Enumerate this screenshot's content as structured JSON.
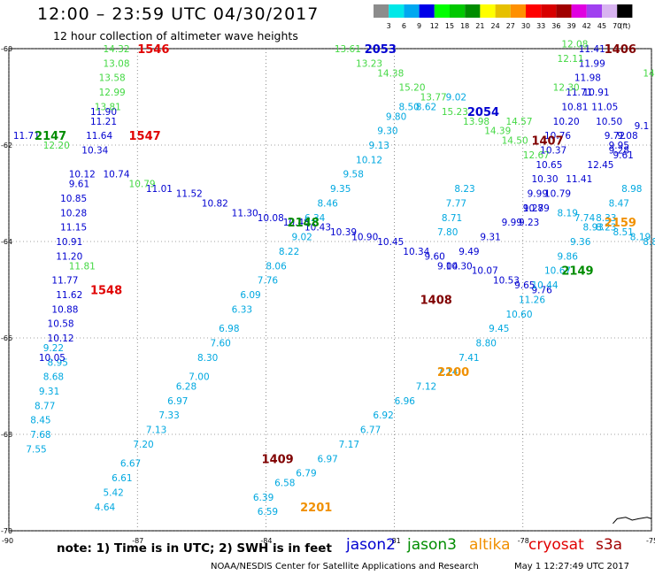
{
  "header": {
    "title": "12:00 – 23:59 UTC 04/30/2017",
    "subtitle": "12 hour collection of altimeter wave heights"
  },
  "colorbar": {
    "labels": [
      "3",
      "6",
      "9",
      "12",
      "15",
      "18",
      "21",
      "24",
      "27",
      "30",
      "33",
      "36",
      "39",
      "42",
      "45",
      "70"
    ],
    "unit": "(ft)",
    "colors": [
      "#8c8c8c",
      "#00e8e8",
      "#00a8f0",
      "#0000e8",
      "#00ff00",
      "#00c800",
      "#008c00",
      "#ffff00",
      "#e6c000",
      "#ff9000",
      "#ff0000",
      "#d80000",
      "#a00000",
      "#e000e0",
      "#a040f0",
      "#d8b4f0",
      "#000000"
    ]
  },
  "note": "note: 1) Time is in UTC; 2) SWH is in feet",
  "missions": [
    {
      "name": "jason2",
      "color": "#0000d0"
    },
    {
      "name": "jason3",
      "color": "#008c00"
    },
    {
      "name": "altika",
      "color": "#f09000"
    },
    {
      "name": "cryosat",
      "color": "#e00000"
    },
    {
      "name": "s3a",
      "color": "#a00000"
    }
  ],
  "credit_left": "NOAA/NESDIS Center for Satellite Applications and Research",
  "credit_right": "May  1 12:27:49 UTC 2017",
  "chart_data": {
    "type": "scatter",
    "title": "12:00 – 23:59 UTC 04/30/2017",
    "subtitle": "12 hour collection of altimeter wave heights",
    "xlim": [
      -90,
      -75
    ],
    "ylim": [
      -70,
      -60
    ],
    "x_ticks": [
      -90,
      -87,
      -84,
      -81,
      -78,
      -75
    ],
    "y_ticks": [
      -60,
      -62,
      -64,
      -66,
      -68,
      -70
    ],
    "grid": true,
    "colors": {
      "blue": "#0000d0",
      "green": "#44d844",
      "cyan": "#00a8e0",
      "time_red": "#e00000",
      "time_green": "#008c00",
      "time_blue": "#0000d0",
      "time_orange": "#f09000",
      "time_maroon": "#800000"
    },
    "series": [
      {
        "name": "track A",
        "color": "cyan",
        "labels": [
          [
            "9.22",
            -89.2,
            -66.2
          ],
          [
            "8.95",
            -89.1,
            -66.5
          ],
          [
            "8.68",
            -89.2,
            -66.8
          ],
          [
            "9.31",
            -89.3,
            -67.1
          ],
          [
            "8.77",
            -89.4,
            -67.4
          ],
          [
            "8.45",
            -89.5,
            -67.7
          ],
          [
            "7.68",
            -89.5,
            -68.0
          ],
          [
            "7.55",
            -89.6,
            -68.3
          ]
        ]
      },
      {
        "name": "track A2",
        "color": "blue",
        "labels": [
          [
            "11.90",
            -88.1,
            -61.3
          ],
          [
            "11.21",
            -88.1,
            -61.5
          ],
          [
            "11.64",
            -88.2,
            -61.8
          ],
          [
            "10.34",
            -88.3,
            -62.1
          ],
          [
            "10.74",
            -87.8,
            -62.6
          ],
          [
            "10.12",
            -88.6,
            -62.6
          ],
          [
            "9.61",
            -88.6,
            -62.8
          ],
          [
            "10.85",
            -88.8,
            -63.1
          ],
          [
            "10.28",
            -88.8,
            -63.4
          ],
          [
            "11.15",
            -88.8,
            -63.7
          ],
          [
            "10.91",
            -88.9,
            -64.0
          ],
          [
            "11.20",
            -88.9,
            -64.3
          ],
          [
            "11.77",
            -89.0,
            -64.8
          ],
          [
            "11.62",
            -88.9,
            -65.1
          ],
          [
            "10.88",
            -89.0,
            -65.4
          ],
          [
            "10.58",
            -89.1,
            -65.7
          ],
          [
            "10.12",
            -89.1,
            -66.0
          ],
          [
            "10.05",
            -89.3,
            -66.4
          ]
        ]
      },
      {
        "name": "track A3",
        "color": "green",
        "labels": [
          [
            "14.32",
            -87.8,
            -60.0
          ],
          [
            "13.08",
            -87.8,
            -60.3
          ],
          [
            "13.58",
            -87.9,
            -60.6
          ],
          [
            "12.99",
            -87.9,
            -60.9
          ],
          [
            "13.81",
            -88.0,
            -61.2
          ],
          [
            "12.20",
            -89.2,
            -62.0
          ],
          [
            "11.81",
            -88.6,
            -64.5
          ],
          [
            "10.79",
            -87.2,
            -62.8
          ]
        ]
      },
      {
        "name": "track B",
        "color": "blue",
        "labels": [
          [
            "11.71",
            -89.9,
            -61.8
          ],
          [
            "11.01",
            -86.8,
            -62.9
          ],
          [
            "11.52",
            -86.1,
            -63.0
          ],
          [
            "10.82",
            -85.5,
            -63.2
          ],
          [
            "11.30",
            -84.8,
            -63.4
          ],
          [
            "10.08",
            -84.2,
            -63.5
          ],
          [
            "10.48",
            -83.6,
            -63.6
          ],
          [
            "10.43",
            -83.1,
            -63.7
          ],
          [
            "10.39",
            -82.5,
            -63.8
          ],
          [
            "10.90",
            -82.0,
            -63.9
          ],
          [
            "10.45",
            -81.4,
            -64.0
          ],
          [
            "10.34",
            -80.8,
            -64.2
          ],
          [
            "9.60",
            -80.3,
            -64.3
          ],
          [
            "10.30",
            -79.8,
            -64.5
          ],
          [
            "10.07",
            -79.2,
            -64.6
          ],
          [
            "10.53",
            -78.7,
            -64.8
          ],
          [
            "9.65",
            -78.2,
            -64.9
          ],
          [
            "9.76",
            -77.8,
            -65.0
          ]
        ]
      },
      {
        "name": "track C",
        "color": "green",
        "labels": [
          [
            "13.61",
            -82.4,
            -60.0
          ],
          [
            "13.23",
            -81.9,
            -60.3
          ],
          [
            "14.38",
            -81.4,
            -60.5
          ],
          [
            "15.20",
            -80.9,
            -60.8
          ],
          [
            "13.77",
            -80.4,
            -61.0
          ],
          [
            "15.23",
            -79.9,
            -61.3
          ],
          [
            "13.98",
            -79.4,
            -61.5
          ],
          [
            "14.39",
            -78.9,
            -61.7
          ],
          [
            "14.50",
            -78.5,
            -61.9
          ],
          [
            "12.67",
            -78.0,
            -62.2
          ]
        ]
      },
      {
        "name": "track D",
        "color": "cyan",
        "labels": [
          [
            "4.64",
            -88.0,
            -69.5
          ],
          [
            "5.42",
            -87.8,
            -69.2
          ],
          [
            "6.61",
            -87.6,
            -68.9
          ],
          [
            "6.67",
            -87.4,
            -68.6
          ],
          [
            "7.20",
            -87.1,
            -68.2
          ],
          [
            "7.13",
            -86.8,
            -67.9
          ],
          [
            "7.33",
            -86.5,
            -67.6
          ],
          [
            "6.97",
            -86.3,
            -67.3
          ],
          [
            "6.28",
            -86.1,
            -67.0
          ],
          [
            "7.00",
            -85.8,
            -66.8
          ],
          [
            "8.30",
            -85.6,
            -66.4
          ],
          [
            "7.60",
            -85.3,
            -66.1
          ],
          [
            "6.98",
            -85.1,
            -65.8
          ],
          [
            "6.33",
            -84.8,
            -65.4
          ],
          [
            "6.09",
            -84.6,
            -65.1
          ],
          [
            "7.76",
            -84.2,
            -64.8
          ],
          [
            "8.06",
            -84.0,
            -64.5
          ],
          [
            "8.22",
            -83.7,
            -64.2
          ],
          [
            "9.02",
            -83.4,
            -63.9
          ],
          [
            "6.34",
            -83.1,
            -63.5
          ],
          [
            "8.46",
            -82.8,
            -63.2
          ],
          [
            "9.35",
            -82.5,
            -62.9
          ],
          [
            "9.58",
            -82.2,
            -62.6
          ],
          [
            "10.12",
            -81.9,
            -62.3
          ],
          [
            "9.13",
            -81.6,
            -62.0
          ],
          [
            "9.30",
            -81.4,
            -61.7
          ],
          [
            "9.80",
            -81.2,
            -61.4
          ],
          [
            "8.50",
            -80.9,
            -61.2
          ],
          [
            "8.62",
            -80.5,
            -61.2
          ],
          [
            "9.02",
            -79.8,
            -61.0
          ]
        ]
      },
      {
        "name": "track E",
        "color": "cyan",
        "labels": [
          [
            "6.59",
            -84.2,
            -69.6
          ],
          [
            "6.39",
            -84.3,
            -69.3
          ],
          [
            "6.58",
            -83.8,
            -69.0
          ],
          [
            "6.79",
            -83.3,
            -68.8
          ],
          [
            "6.97",
            -82.8,
            -68.5
          ],
          [
            "7.17",
            -82.3,
            -68.2
          ],
          [
            "6.77",
            -81.8,
            -67.9
          ],
          [
            "6.92",
            -81.5,
            -67.6
          ],
          [
            "6.96",
            -81.0,
            -67.3
          ],
          [
            "7.12",
            -80.5,
            -67.0
          ],
          [
            "7.14",
            -80.0,
            -66.7
          ],
          [
            "7.41",
            -79.5,
            -66.4
          ],
          [
            "8.80",
            -79.1,
            -66.1
          ],
          [
            "9.45",
            -78.8,
            -65.8
          ],
          [
            "10.60",
            -78.4,
            -65.5
          ],
          [
            "11.26",
            -78.1,
            -65.2
          ],
          [
            "10.44",
            -77.8,
            -64.9
          ],
          [
            "10.67",
            -77.5,
            -64.6
          ],
          [
            "9.86",
            -77.2,
            -64.3
          ],
          [
            "9.36",
            -76.9,
            -64.0
          ],
          [
            "8.93",
            -76.6,
            -63.7
          ],
          [
            "8.33",
            -76.3,
            -63.5
          ],
          [
            "8.47",
            -76.0,
            -63.2
          ],
          [
            "8.98",
            -75.7,
            -62.9
          ]
        ]
      },
      {
        "name": "track F",
        "color": "blue",
        "labels": [
          [
            "9.04",
            -80.0,
            -64.5
          ],
          [
            "9.49",
            -79.5,
            -64.2
          ],
          [
            "9.31",
            -79.0,
            -63.9
          ],
          [
            "9.99",
            -78.5,
            -63.6
          ],
          [
            "9.28",
            -78.0,
            -63.3
          ],
          [
            "10.79",
            -77.5,
            -63.0
          ],
          [
            "11.41",
            -77.0,
            -62.7
          ],
          [
            "12.45",
            -76.5,
            -62.4
          ],
          [
            "9.28",
            -76.0,
            -62.1
          ],
          [
            "9.08",
            -75.8,
            -61.8
          ],
          [
            "9.1",
            -75.4,
            -61.6
          ]
        ]
      },
      {
        "name": "track G",
        "color": "blue",
        "labels": [
          [
            "11.41",
            -76.7,
            -60.0
          ],
          [
            "11.99",
            -76.7,
            -60.3
          ],
          [
            "11.98",
            -76.8,
            -60.6
          ],
          [
            "11.71",
            -77.0,
            -60.9
          ],
          [
            "10.81",
            -77.1,
            -61.2
          ],
          [
            "10.20",
            -77.3,
            -61.5
          ],
          [
            "10.76",
            -77.5,
            -61.8
          ],
          [
            "10.37",
            -77.6,
            -62.1
          ],
          [
            "10.65",
            -77.7,
            -62.4
          ],
          [
            "10.30",
            -77.8,
            -62.7
          ],
          [
            "9.99",
            -77.9,
            -63.0
          ],
          [
            "10.79",
            -78.0,
            -63.3
          ],
          [
            "9.23",
            -78.1,
            -63.6
          ],
          [
            "10.91",
            -76.6,
            -60.9
          ],
          [
            "11.05",
            -76.4,
            -61.2
          ],
          [
            "10.50",
            -76.3,
            -61.5
          ],
          [
            "9.72",
            -76.1,
            -61.8
          ],
          [
            "9.95",
            -76.0,
            -62.0
          ],
          [
            "9.61",
            -75.9,
            -62.2
          ]
        ]
      },
      {
        "name": "track H",
        "color": "green",
        "labels": [
          [
            "12.08",
            -77.1,
            -59.9
          ],
          [
            "12.11",
            -77.2,
            -60.2
          ],
          [
            "12.30",
            -77.3,
            -60.8
          ],
          [
            "14.57",
            -78.4,
            -61.5
          ],
          [
            "14.81",
            -75.2,
            -60.5
          ]
        ]
      },
      {
        "name": "track I",
        "color": "cyan",
        "labels": [
          [
            "8.23",
            -79.6,
            -62.9
          ],
          [
            "7.77",
            -79.8,
            -63.2
          ],
          [
            "8.71",
            -79.9,
            -63.5
          ],
          [
            "7.80",
            -80.0,
            -63.8
          ],
          [
            "8.19",
            -77.2,
            -63.4
          ],
          [
            "7.74",
            -76.8,
            -63.5
          ],
          [
            "8.23",
            -76.3,
            -63.7
          ],
          [
            "8.51",
            -75.9,
            -63.8
          ],
          [
            "8.19",
            -75.5,
            -63.9
          ],
          [
            "8.8",
            -75.2,
            -64.0
          ]
        ]
      }
    ],
    "time_labels": [
      {
        "text": "1546",
        "x": -87.0,
        "y": -60.0,
        "color": "time_red"
      },
      {
        "text": "1547",
        "x": -87.2,
        "y": -61.8,
        "color": "time_red"
      },
      {
        "text": "1548",
        "x": -88.1,
        "y": -65.0,
        "color": "time_red"
      },
      {
        "text": "2147",
        "x": -89.4,
        "y": -61.8,
        "color": "time_green"
      },
      {
        "text": "2148",
        "x": -83.5,
        "y": -63.6,
        "color": "time_green"
      },
      {
        "text": "2149",
        "x": -77.1,
        "y": -64.6,
        "color": "time_green"
      },
      {
        "text": "2053",
        "x": -81.7,
        "y": -60.0,
        "color": "time_blue"
      },
      {
        "text": "2054",
        "x": -79.3,
        "y": -61.3,
        "color": "time_blue"
      },
      {
        "text": "1406",
        "x": -76.1,
        "y": -60.0,
        "color": "time_maroon"
      },
      {
        "text": "1407",
        "x": -77.8,
        "y": -61.9,
        "color": "time_maroon"
      },
      {
        "text": "1408",
        "x": -80.4,
        "y": -65.2,
        "color": "time_maroon"
      },
      {
        "text": "1409",
        "x": -84.1,
        "y": -68.5,
        "color": "time_maroon"
      },
      {
        "text": "2159",
        "x": -76.1,
        "y": -63.6,
        "color": "time_orange"
      },
      {
        "text": "2200",
        "x": -80.0,
        "y": -66.7,
        "color": "time_orange"
      },
      {
        "text": "2201",
        "x": -83.2,
        "y": -69.5,
        "color": "time_orange"
      }
    ]
  }
}
